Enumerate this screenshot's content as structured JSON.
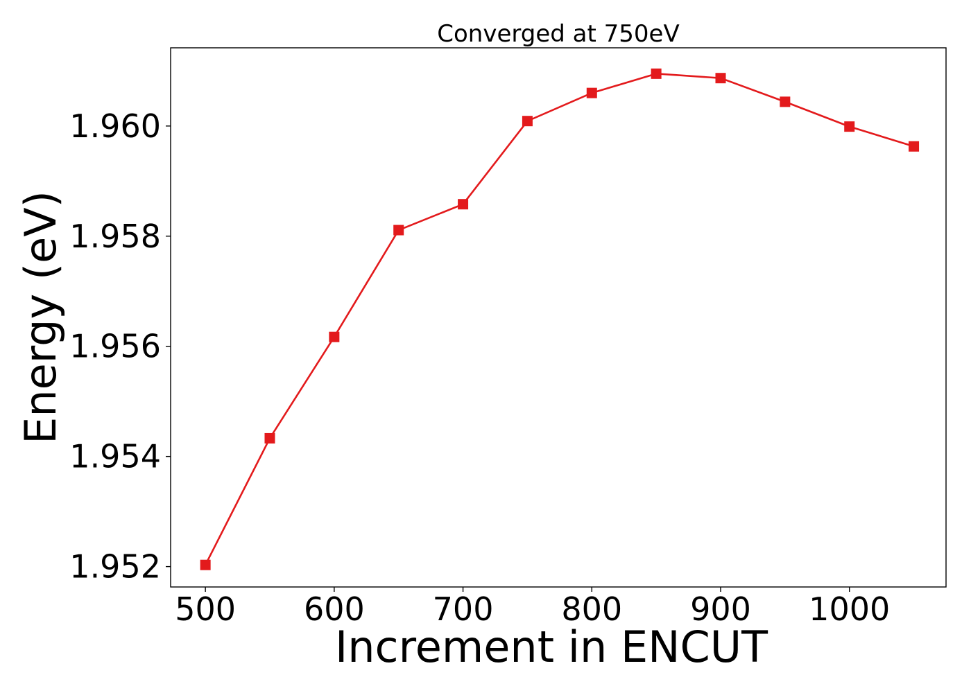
{
  "chart_data": {
    "type": "line",
    "title": "Converged at 750eV",
    "xlabel": "Increment in ENCUT",
    "ylabel": "Energy (eV)",
    "xlim": [
      473,
      1075
    ],
    "ylim": [
      1.95163,
      1.96142
    ],
    "xticks": [
      500,
      600,
      700,
      800,
      900,
      1000
    ],
    "xtick_labels": [
      "500",
      "600",
      "700",
      "800",
      "900",
      "1000"
    ],
    "yticks": [
      1.952,
      1.954,
      1.956,
      1.958,
      1.96
    ],
    "ytick_labels": [
      "1.952",
      "1.954",
      "1.956",
      "1.958",
      "1.960"
    ],
    "grid": false,
    "legend": false,
    "series": [
      {
        "color": "#e31a1c",
        "marker": "square",
        "x": [
          500,
          550,
          600,
          650,
          700,
          750,
          800,
          850,
          900,
          950,
          1000,
          1050
        ],
        "y": [
          1.95203,
          1.95433,
          1.95617,
          1.95811,
          1.95858,
          1.96009,
          1.9606,
          1.96095,
          1.96087,
          1.96044,
          1.95999,
          1.95963
        ]
      }
    ]
  }
}
